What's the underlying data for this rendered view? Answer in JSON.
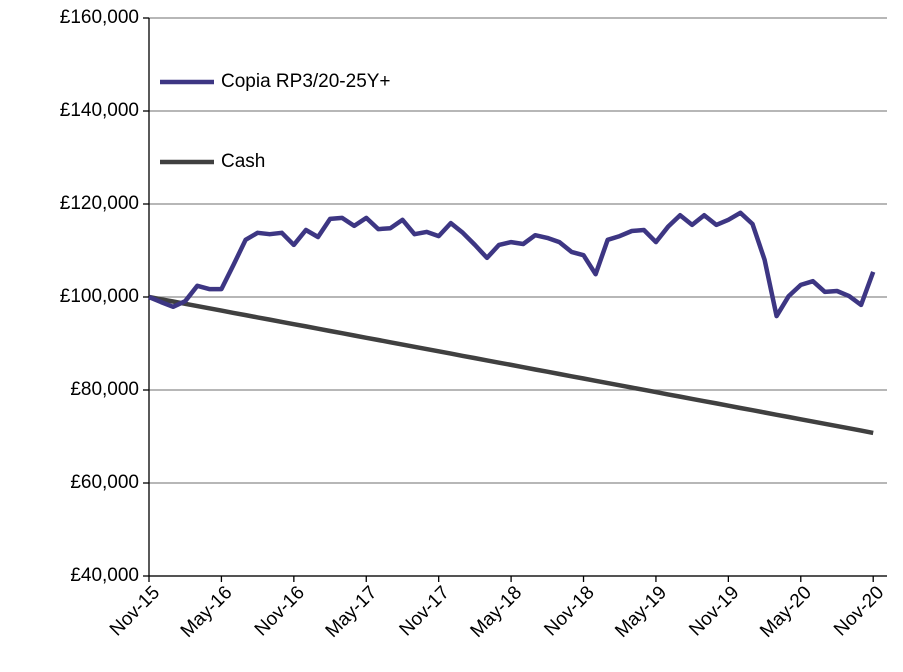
{
  "chart_data": {
    "type": "line",
    "categories": [
      "Nov-15",
      null,
      null,
      null,
      null,
      null,
      "May-16",
      null,
      null,
      null,
      null,
      null,
      "Nov-16",
      null,
      null,
      null,
      null,
      null,
      "May-17",
      null,
      null,
      null,
      null,
      null,
      "Nov-17",
      null,
      null,
      null,
      null,
      null,
      "May-18",
      null,
      null,
      null,
      null,
      null,
      "Nov-18",
      null,
      null,
      null,
      null,
      null,
      "May-19",
      null,
      null,
      null,
      null,
      null,
      "Nov-19",
      null,
      null,
      null,
      null,
      null,
      "May-20",
      null,
      null,
      null,
      null,
      null,
      "Nov-20"
    ],
    "series": [
      {
        "name": "Copia RP3/20-25Y+",
        "color": "#3d3683",
        "values": [
          100000,
          98900,
          97900,
          99100,
          102400,
          101700,
          101700,
          106900,
          112300,
          113800,
          113500,
          113800,
          111200,
          114400,
          112900,
          116800,
          117000,
          115300,
          117000,
          114600,
          114800,
          116600,
          113500,
          114000,
          113100,
          115900,
          113800,
          111200,
          108400,
          111200,
          111800,
          111400,
          113300,
          112700,
          111800,
          109700,
          109000,
          104900,
          112300,
          113100,
          114200,
          114400,
          111800,
          115100,
          117600,
          115500,
          117600,
          115500,
          116600,
          118100,
          115700,
          108000,
          95900,
          100200,
          102600,
          103400,
          101100,
          101300,
          100200,
          98300,
          105400
        ]
      },
      {
        "name": "Cash",
        "color": "#404040",
        "values": [
          100000,
          99513,
          99026,
          98539,
          98052,
          97565,
          97078,
          96591,
          96104,
          95617,
          95130,
          94643,
          94156,
          93669,
          93182,
          92695,
          92208,
          91721,
          91234,
          90747,
          90260,
          89773,
          89286,
          88799,
          88312,
          87825,
          87338,
          86851,
          86364,
          85877,
          85390,
          84903,
          84416,
          83929,
          83442,
          82955,
          82468,
          81981,
          81494,
          81007,
          80520,
          80033,
          79546,
          79059,
          78572,
          78085,
          77598,
          77111,
          76624,
          76137,
          75650,
          75163,
          74676,
          74189,
          73702,
          73215,
          72728,
          72241,
          71754,
          71267,
          70780
        ]
      }
    ],
    "ylim": [
      40000,
      160000
    ],
    "yticks": [
      {
        "value": 40000,
        "label": "£40,000"
      },
      {
        "value": 60000,
        "label": "£60,000"
      },
      {
        "value": 80000,
        "label": "£80,000"
      },
      {
        "value": 100000,
        "label": "£100,000"
      },
      {
        "value": 120000,
        "label": "£120,000"
      },
      {
        "value": 140000,
        "label": "£140,000"
      },
      {
        "value": 160000,
        "label": "£160,000"
      }
    ],
    "grid": true,
    "legend": "upper left"
  }
}
